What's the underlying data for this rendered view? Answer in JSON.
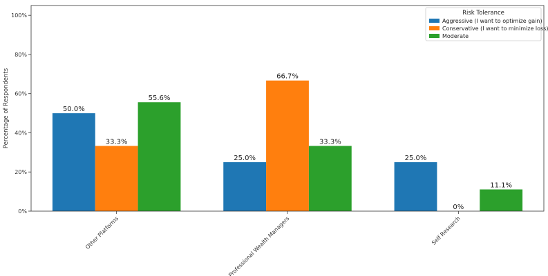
{
  "chart_data": {
    "type": "bar",
    "title": "",
    "xlabel": "",
    "ylabel": "Percentage of Respondents",
    "ylim": [
      0,
      105
    ],
    "yticks": [
      0,
      20,
      40,
      60,
      80,
      100
    ],
    "ytick_labels": [
      "0%",
      "20%",
      "40%",
      "60%",
      "80%",
      "100%"
    ],
    "categories": [
      "Other Platforms",
      "Professional Wealth Managers",
      "Self Research"
    ],
    "legend": {
      "title": "Risk Tolerance",
      "placement": "top-right"
    },
    "series": [
      {
        "name": "Aggressive (I want to optimize gain)",
        "color": "#1f77b4",
        "values": [
          50.0,
          25.0,
          25.0
        ],
        "labels": [
          "50.0%",
          "25.0%",
          "25.0%"
        ]
      },
      {
        "name": "Conservative (I want to minimize loss)",
        "color": "#ff7f0e",
        "values": [
          33.3,
          66.7,
          0
        ],
        "labels": [
          "33.3%",
          "66.7%",
          "0%"
        ]
      },
      {
        "name": "Moderate",
        "color": "#2ca02c",
        "values": [
          55.6,
          33.3,
          11.1
        ],
        "labels": [
          "55.6%",
          "33.3%",
          "11.1%"
        ]
      }
    ],
    "grid": false
  }
}
